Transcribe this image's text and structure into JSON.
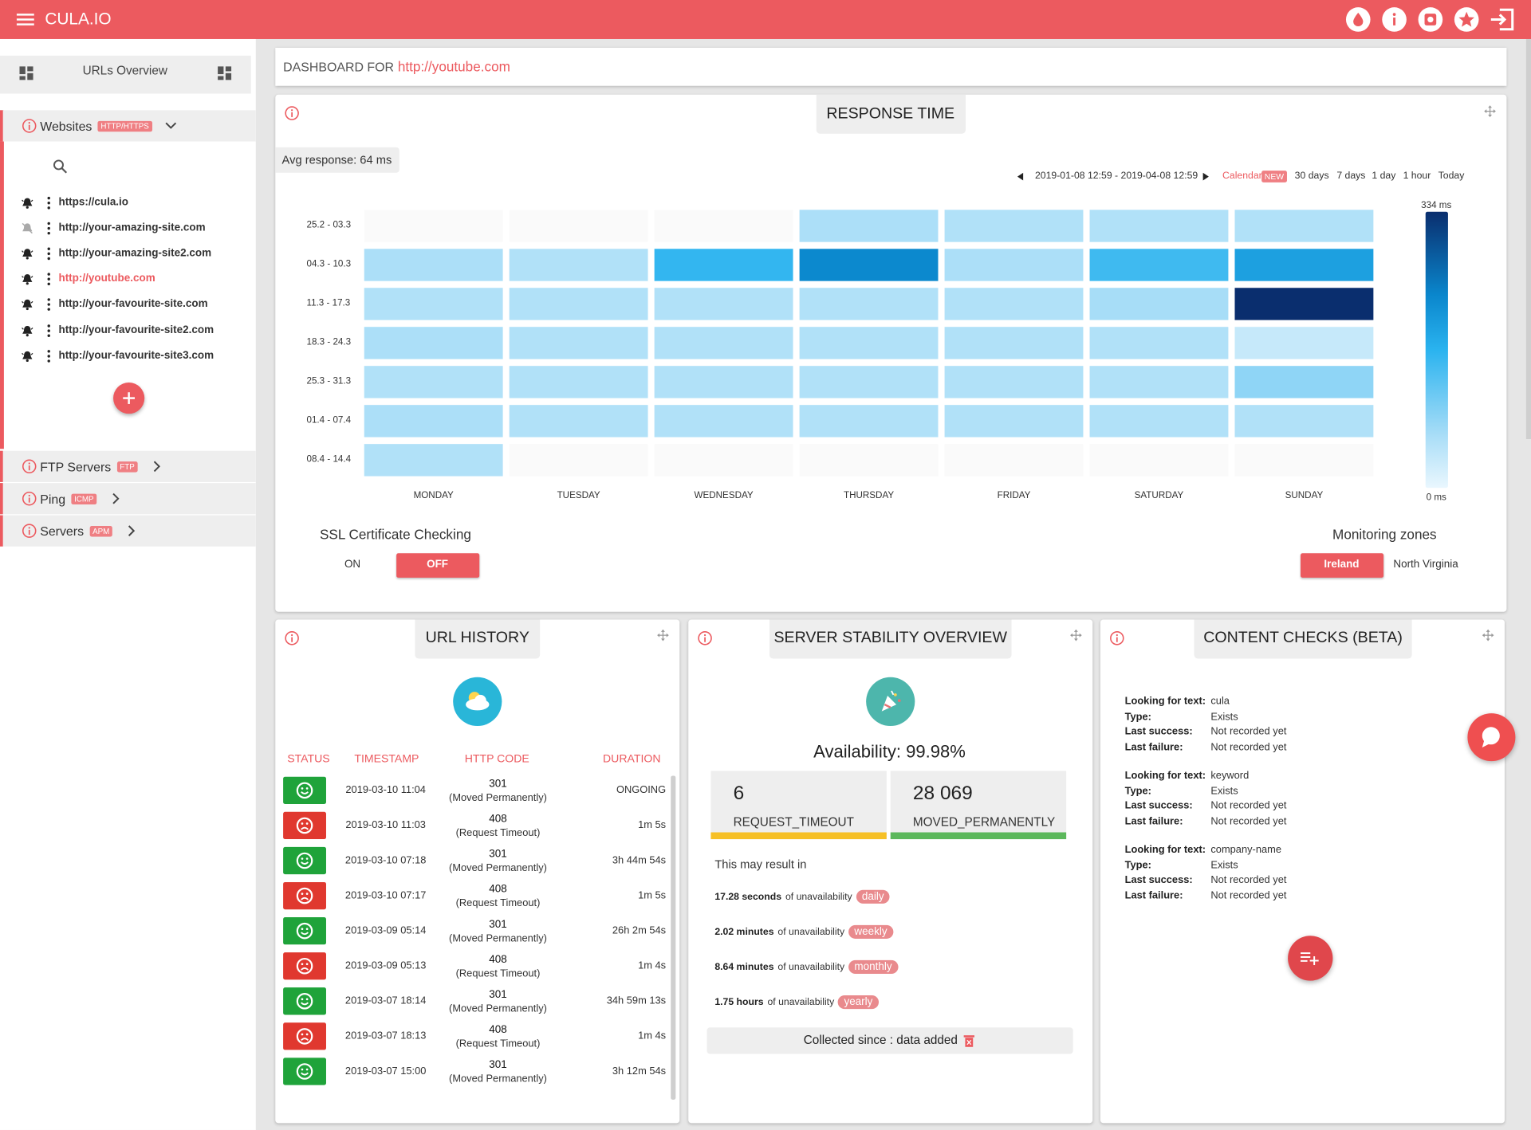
{
  "header": {
    "brand": "CULA.IO"
  },
  "sidebar": {
    "overview": "URLs Overview",
    "sections": [
      {
        "name": "Websites",
        "tag": "HTTP/HTTPS"
      },
      {
        "name": "FTP Servers",
        "tag": "FTP"
      },
      {
        "name": "Ping",
        "tag": "ICMP"
      },
      {
        "name": "Servers",
        "tag": "APM"
      }
    ],
    "urls": [
      "https://cula.io",
      "http://your-amazing-site.com",
      "http://your-amazing-site2.com",
      "http://youtube.com",
      "http://your-favourite-site.com",
      "http://your-favourite-site2.com",
      "http://your-favourite-site3.com"
    ],
    "active_url": 3
  },
  "dashboard": {
    "label": "DASHBOARD FOR",
    "url": "http://youtube.com"
  },
  "response_time": {
    "title": "RESPONSE TIME",
    "avg": "Avg response: 64 ms",
    "range": "2019-01-08 12:59 - 2019-04-08 12:59",
    "calendar": "Calendar",
    "badge": "NEW",
    "periods": [
      "30 days",
      "7 days",
      "1 day",
      "1 hour",
      "Today"
    ],
    "heatmap": {
      "rows": [
        "25.2 - 03.3",
        "04.3 - 10.3",
        "11.3 - 17.3",
        "18.3 - 24.3",
        "25.3 - 31.3",
        "01.4 - 07.4",
        "08.4 - 14.4"
      ],
      "columns": [
        "MONDAY",
        "TUESDAY",
        "WEDNESDAY",
        "THURSDAY",
        "FRIDAY",
        "SATURDAY",
        "SUNDAY"
      ],
      "values": [
        [
          null,
          null,
          null,
          60,
          55,
          55,
          55
        ],
        [
          60,
          55,
          160,
          230,
          60,
          150,
          195
        ],
        [
          55,
          55,
          55,
          55,
          55,
          65,
          334
        ],
        [
          60,
          55,
          55,
          55,
          55,
          55,
          35
        ],
        [
          55,
          55,
          55,
          55,
          55,
          55,
          85
        ],
        [
          60,
          55,
          55,
          55,
          55,
          55,
          55
        ],
        [
          55,
          null,
          null,
          null,
          null,
          null,
          null
        ]
      ],
      "scale_max": {
        "value": 334,
        "label": "334 ms"
      },
      "scale_min": {
        "value": 0,
        "label": "0 ms"
      }
    },
    "ssl": {
      "title": "SSL Certificate Checking",
      "on": "ON",
      "off": "OFF"
    },
    "zones": {
      "title": "Monitoring zones",
      "items": [
        "Ireland",
        "North Virginia"
      ]
    }
  },
  "url_history": {
    "title": "URL HISTORY",
    "columns": [
      "STATUS",
      "TIMESTAMP",
      "HTTP CODE",
      "DURATION"
    ],
    "rows": [
      {
        "ok": true,
        "timestamp": "2019-03-10 11:04",
        "code": 301,
        "reason": "(Moved Permanently)",
        "duration": "ONGOING"
      },
      {
        "ok": false,
        "timestamp": "2019-03-10 11:03",
        "code": 408,
        "reason": "(Request Timeout)",
        "duration": "1m 5s"
      },
      {
        "ok": true,
        "timestamp": "2019-03-10 07:18",
        "code": 301,
        "reason": "(Moved Permanently)",
        "duration": "3h 44m 54s"
      },
      {
        "ok": false,
        "timestamp": "2019-03-10 07:17",
        "code": 408,
        "reason": "(Request Timeout)",
        "duration": "1m 5s"
      },
      {
        "ok": true,
        "timestamp": "2019-03-09 05:14",
        "code": 301,
        "reason": "(Moved Permanently)",
        "duration": "26h 2m 54s"
      },
      {
        "ok": false,
        "timestamp": "2019-03-09 05:13",
        "code": 408,
        "reason": "(Request Timeout)",
        "duration": "1m 4s"
      },
      {
        "ok": true,
        "timestamp": "2019-03-07 18:14",
        "code": 301,
        "reason": "(Moved Permanently)",
        "duration": "34h 59m 13s"
      },
      {
        "ok": false,
        "timestamp": "2019-03-07 18:13",
        "code": 408,
        "reason": "(Request Timeout)",
        "duration": "1m 4s"
      },
      {
        "ok": true,
        "timestamp": "2019-03-07 15:00",
        "code": 301,
        "reason": "(Moved Permanently)",
        "duration": "3h 12m 54s"
      }
    ]
  },
  "stability": {
    "title": "SERVER STABILITY OVERVIEW",
    "availability": "Availability: 99.98%",
    "counters": [
      {
        "value": "6",
        "label": "REQUEST_TIMEOUT",
        "color": "#f6c026"
      },
      {
        "value": "28 069",
        "label": "MOVED_PERMANENTLY",
        "color": "#5cb85c"
      }
    ],
    "note": "This may result in",
    "impacts": [
      {
        "amount": "17.28 seconds",
        "text": "of unavailability",
        "period": "daily"
      },
      {
        "amount": "2.02 minutes",
        "text": "of unavailability",
        "period": "weekly"
      },
      {
        "amount": "8.64 minutes",
        "text": "of unavailability",
        "period": "monthly"
      },
      {
        "amount": "1.75 hours",
        "text": "of unavailability",
        "period": "yearly"
      }
    ],
    "collected": "Collected since : data added"
  },
  "content_checks": {
    "title": "CONTENT CHECKS (BETA)",
    "labels": [
      "Looking for text:",
      "Type:",
      "Last success:",
      "Last failure:"
    ],
    "checks": [
      [
        "cula",
        "Exists",
        "Not recorded yet",
        "Not recorded yet"
      ],
      [
        "keyword",
        "Exists",
        "Not recorded yet",
        "Not recorded yet"
      ],
      [
        "company-name",
        "Exists",
        "Not recorded yet",
        "Not recorded yet"
      ]
    ]
  }
}
